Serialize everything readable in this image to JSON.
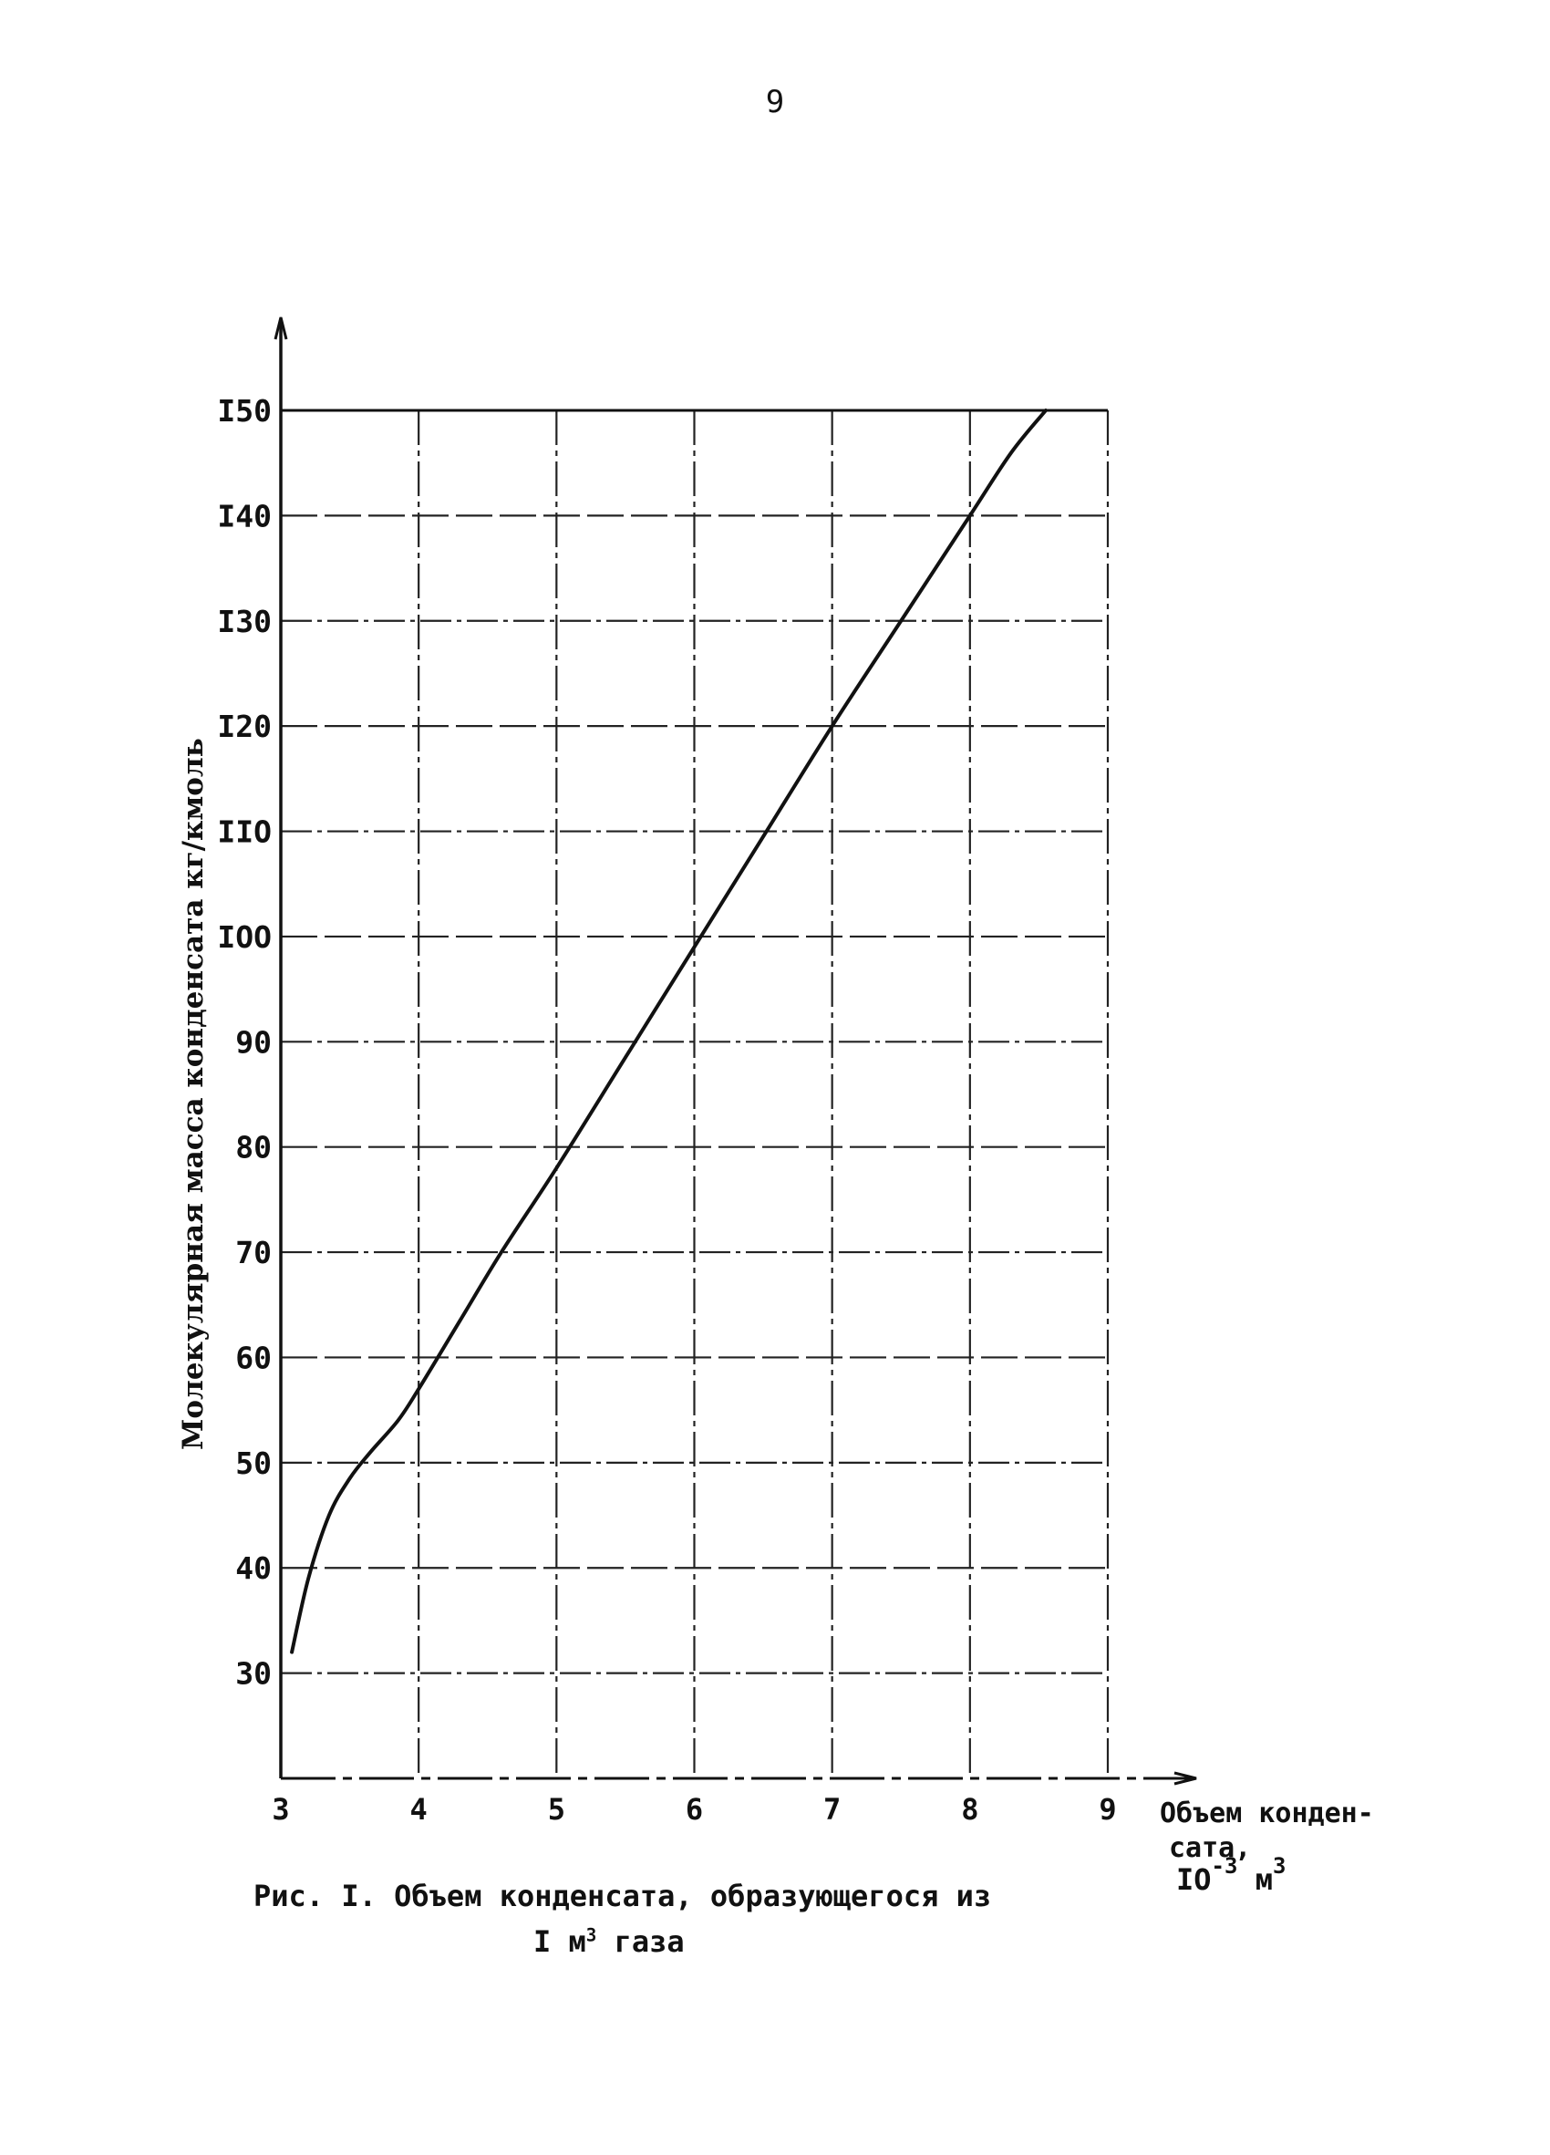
{
  "page": {
    "number": "9"
  },
  "figure": {
    "caption_line1": "Рис. I. Объем конденсата, образующегося из",
    "caption_line2_prefix": "I м",
    "caption_line2_sup": "3",
    "caption_line2_suffix": " газа"
  },
  "chart_data": {
    "type": "line",
    "ylabel": "Молекулярная масса конденсата кг/кмоль",
    "xlabel_line1": "Объем конден-",
    "xlabel_line2": "сата,",
    "xlabel_unit_base": "IO",
    "xlabel_unit_exp": "-3",
    "xlabel_unit_m": " м",
    "xlabel_unit_m_exp": "3",
    "xlim": [
      3,
      9
    ],
    "ylim": [
      20,
      150
    ],
    "x_ticks": [
      3,
      4,
      5,
      6,
      7,
      8,
      9
    ],
    "x_tick_labels": [
      "3",
      "4",
      "5",
      "6",
      "7",
      "8",
      "9"
    ],
    "y_ticks": [
      30,
      40,
      50,
      60,
      70,
      80,
      90,
      100,
      110,
      120,
      130,
      140,
      150
    ],
    "y_tick_labels": [
      "30",
      "40",
      "50",
      "60",
      "70",
      "80",
      "90",
      "IOO",
      "IIO",
      "I20",
      "I30",
      "I40",
      "I50"
    ],
    "grid": true,
    "series": [
      {
        "x": [
          3.08,
          3.2,
          3.35,
          3.5,
          3.65,
          3.85,
          4.0,
          4.3,
          4.6,
          5.0,
          5.5,
          6.0,
          6.5,
          7.0,
          7.5,
          8.0,
          8.3,
          8.55
        ],
        "y": [
          32,
          39,
          45,
          48.5,
          51,
          54,
          57,
          63.5,
          70,
          78,
          88.5,
          99,
          109.5,
          120,
          130,
          140,
          146,
          150
        ]
      }
    ]
  }
}
